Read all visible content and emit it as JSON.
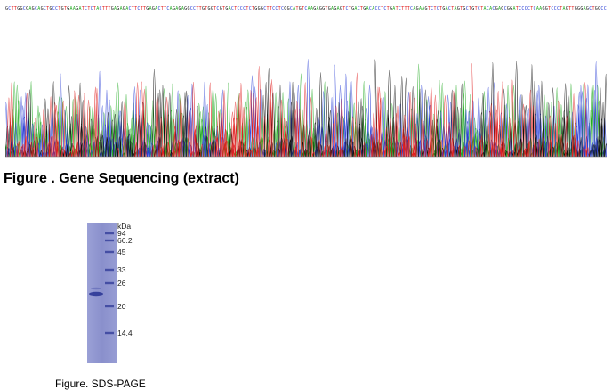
{
  "sequencing": {
    "title": "Figure . Gene Sequencing (extract)",
    "sequence": "GCTTGGCGAGCAGCTGCCTGTGAAGATCTCTACTTTGAGAGACTTCTTGAGACTTCAGAGAGGCCTTGTGGTCGTGACTCCCTCTGGGCTTCCTCGGCATGTCAAGAGGTGAGAGTCTGACTGACACCTCTGATCTTTCAGAAGTCTCTGACTAGTGCTGTCTACACGAGCGGATCCCCTCAAGGTCCCTAGTTGGGAGCTGGCC",
    "base_colors": {
      "A": "#22aa22",
      "C": "#2a3fd6",
      "G": "#111111",
      "T": "#e02020"
    }
  },
  "gel": {
    "caption": "Figure. SDS-PAGE",
    "unit_label": "kDa",
    "marker_labels": [
      "94",
      "66.2",
      "45",
      "33",
      "26",
      "20",
      "14.4"
    ],
    "lane_color": "#8d93cf",
    "band_color": "#2c3796"
  }
}
